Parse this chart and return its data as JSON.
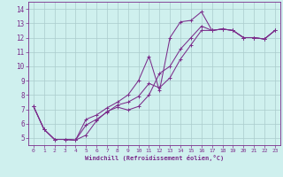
{
  "xlabel": "Windchill (Refroidissement éolien,°C)",
  "bg_color": "#cff0ee",
  "line_color": "#7b2d8b",
  "grid_color": "#aacccc",
  "spine_color": "#7b2d8b",
  "xlim": [
    -0.5,
    23.5
  ],
  "ylim": [
    4.5,
    14.5
  ],
  "xticks": [
    0,
    1,
    2,
    3,
    4,
    5,
    6,
    7,
    8,
    9,
    10,
    11,
    12,
    13,
    14,
    15,
    16,
    17,
    18,
    19,
    20,
    21,
    22,
    23
  ],
  "yticks": [
    5,
    6,
    7,
    8,
    9,
    10,
    11,
    12,
    13,
    14
  ],
  "series1": [
    [
      0,
      7.2
    ],
    [
      1,
      5.6
    ],
    [
      2,
      4.9
    ],
    [
      3,
      4.9
    ],
    [
      4,
      4.85
    ],
    [
      5,
      6.3
    ],
    [
      6,
      6.6
    ],
    [
      7,
      7.1
    ],
    [
      8,
      7.5
    ],
    [
      9,
      8.0
    ],
    [
      10,
      9.0
    ],
    [
      11,
      10.7
    ],
    [
      12,
      8.3
    ],
    [
      13,
      12.0
    ],
    [
      14,
      13.1
    ],
    [
      15,
      13.2
    ],
    [
      16,
      13.8
    ],
    [
      17,
      12.5
    ],
    [
      18,
      12.6
    ],
    [
      19,
      12.5
    ],
    [
      20,
      12.0
    ],
    [
      21,
      12.0
    ],
    [
      22,
      11.9
    ],
    [
      23,
      12.5
    ]
  ],
  "series2": [
    [
      0,
      7.2
    ],
    [
      1,
      5.6
    ],
    [
      2,
      4.9
    ],
    [
      3,
      4.9
    ],
    [
      4,
      4.85
    ],
    [
      5,
      5.9
    ],
    [
      6,
      6.3
    ],
    [
      7,
      6.8
    ],
    [
      8,
      7.3
    ],
    [
      9,
      7.5
    ],
    [
      10,
      7.9
    ],
    [
      11,
      8.8
    ],
    [
      12,
      8.5
    ],
    [
      13,
      9.2
    ],
    [
      14,
      10.5
    ],
    [
      15,
      11.5
    ],
    [
      16,
      12.5
    ],
    [
      17,
      12.5
    ],
    [
      18,
      12.6
    ],
    [
      19,
      12.5
    ],
    [
      20,
      12.0
    ],
    [
      21,
      12.0
    ],
    [
      22,
      11.9
    ],
    [
      23,
      12.5
    ]
  ],
  "series3": [
    [
      0,
      7.2
    ],
    [
      1,
      5.6
    ],
    [
      2,
      4.9
    ],
    [
      3,
      4.9
    ],
    [
      4,
      4.85
    ],
    [
      5,
      5.2
    ],
    [
      6,
      6.2
    ],
    [
      7,
      6.85
    ],
    [
      8,
      7.15
    ],
    [
      9,
      6.95
    ],
    [
      10,
      7.2
    ],
    [
      11,
      8.0
    ],
    [
      12,
      9.5
    ],
    [
      13,
      10.0
    ],
    [
      14,
      11.2
    ],
    [
      15,
      12.0
    ],
    [
      16,
      12.8
    ],
    [
      17,
      12.5
    ],
    [
      18,
      12.6
    ],
    [
      19,
      12.5
    ],
    [
      20,
      12.0
    ],
    [
      21,
      12.0
    ],
    [
      22,
      11.9
    ],
    [
      23,
      12.5
    ]
  ]
}
